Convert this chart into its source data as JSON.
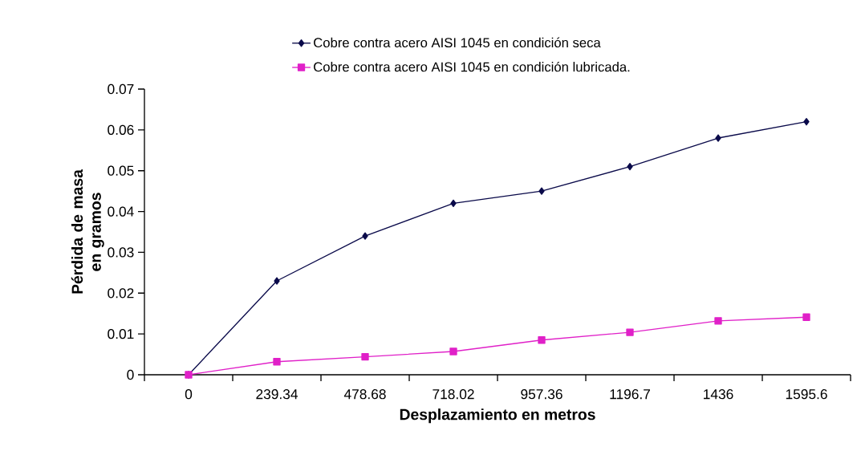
{
  "chart_data": {
    "type": "line",
    "xlabel": "Desplazamiento en metros",
    "ylabel": "Pérdida de masa en gramos",
    "categories": [
      "0",
      "239.34",
      "478.68",
      "718.02",
      "957.36",
      "1196.7",
      "1436",
      "1595.6"
    ],
    "series": [
      {
        "name": "Cobre contra acero AISI 1045 en condición seca",
        "color": "#0a0a4a",
        "marker": "diamond",
        "values": [
          0,
          0.023,
          0.034,
          0.042,
          0.045,
          0.051,
          0.058,
          0.062
        ]
      },
      {
        "name": "Cobre contra acero AISI 1045 en condición lubricada.",
        "color": "#e020c8",
        "marker": "square",
        "values": [
          0,
          0.0032,
          0.0044,
          0.0057,
          0.0085,
          0.0104,
          0.0132,
          0.0141
        ]
      }
    ],
    "ylim": [
      0,
      0.07
    ],
    "yticks": [
      0,
      0.01,
      0.02,
      0.03,
      0.04,
      0.05,
      0.06,
      0.07
    ],
    "grid": false,
    "legend": "top",
    "line_style": "solid"
  }
}
